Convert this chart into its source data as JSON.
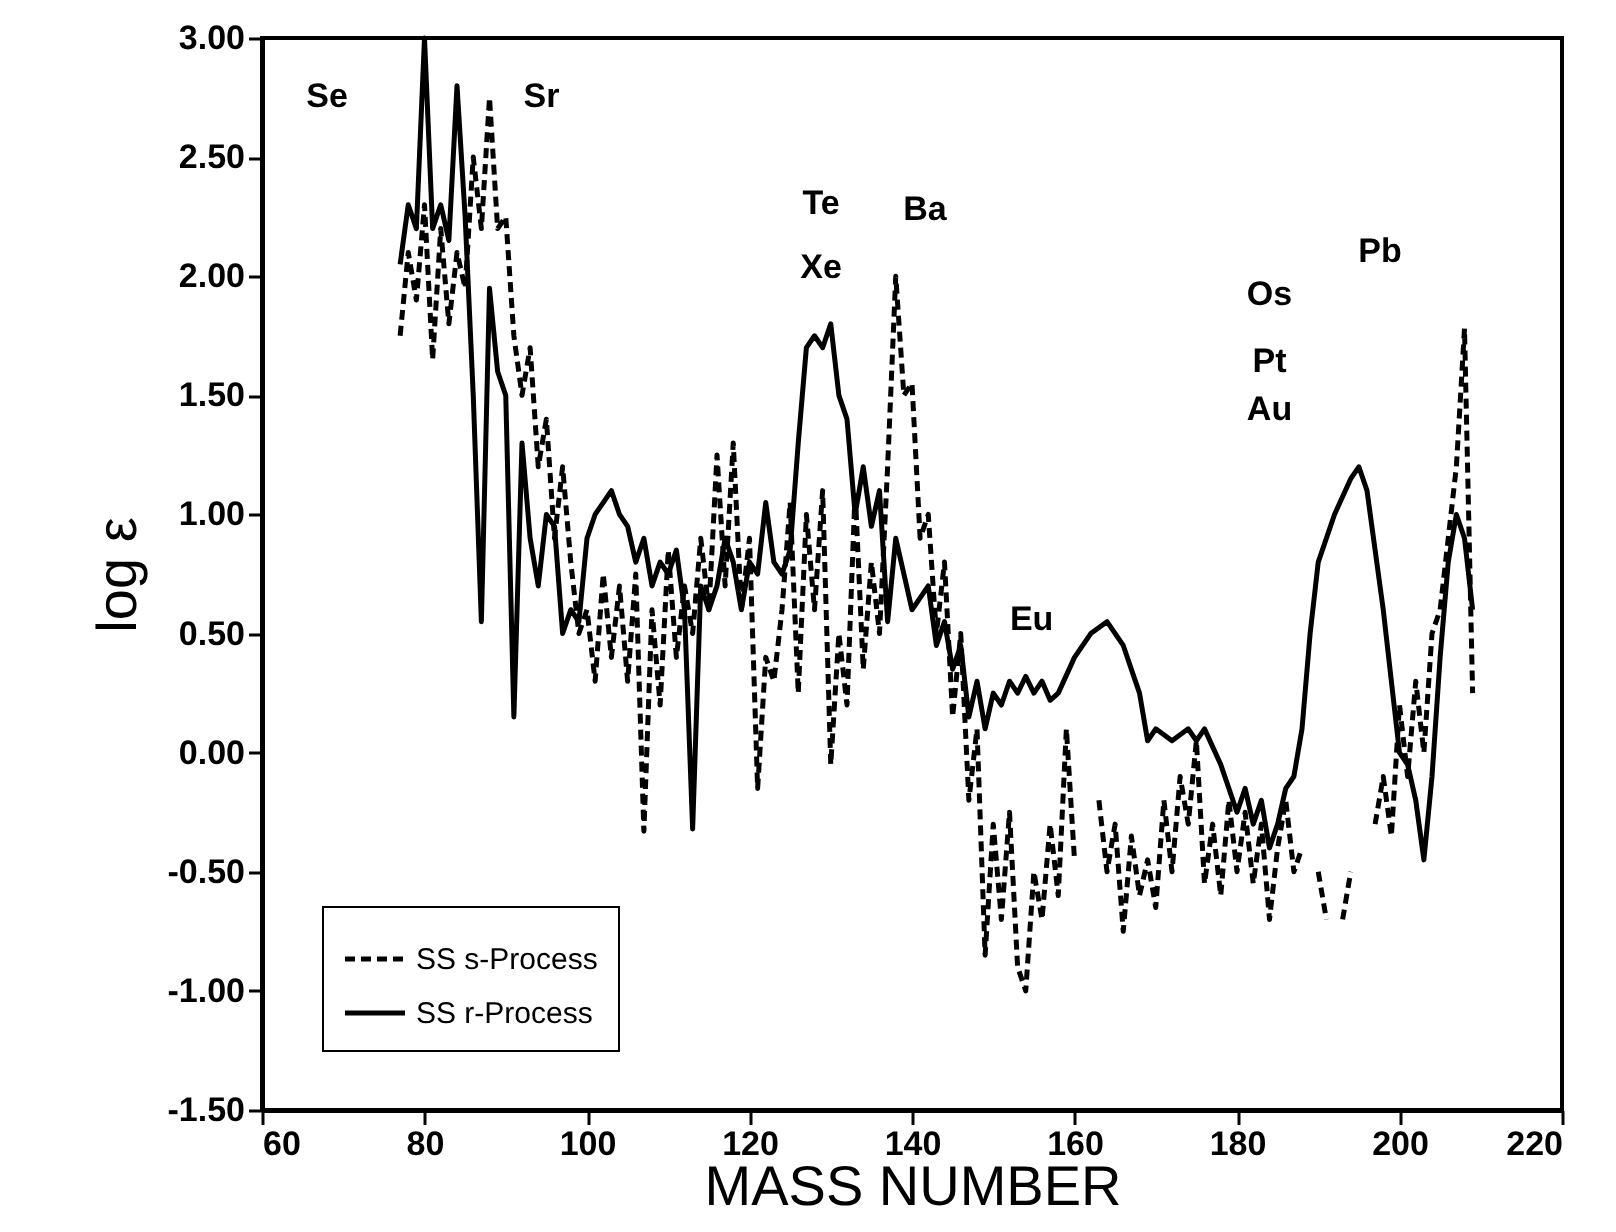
{
  "chart_data": {
    "type": "line",
    "xlabel": "MASS NUMBER",
    "ylabel": "log ε",
    "xlim": [
      60,
      220
    ],
    "xticks": [
      60,
      80,
      100,
      120,
      140,
      160,
      180,
      200,
      220
    ],
    "ylim": [
      -1.5,
      3.0
    ],
    "yticks": [
      {
        "value": -1.5,
        "label": "-1.50"
      },
      {
        "value": -1.0,
        "label": "-1.00"
      },
      {
        "value": -0.5,
        "label": "-0.50"
      },
      {
        "value": 0,
        "label": "0.00"
      },
      {
        "value": 0.5,
        "label": "0.50"
      },
      {
        "value": 1.0,
        "label": "1.00"
      },
      {
        "value": 1.5,
        "label": "1.50"
      },
      {
        "value": 2.0,
        "label": "2.00"
      },
      {
        "value": 2.5,
        "label": "2.50"
      },
      {
        "value": 3.0,
        "label": "3.00"
      }
    ],
    "grid": false,
    "legend": "bottom left",
    "marker": "none",
    "annotations": [
      "Se",
      "Sr",
      "Te",
      "Xe",
      "Ba",
      "Eu",
      "Os",
      "Pt",
      "Au",
      "Pb"
    ],
    "series": [
      {
        "name": "SS s-Process",
        "color": "#000000",
        "line_style": "dashed",
        "x": [
          77,
          78,
          79,
          80,
          81,
          82,
          83,
          84,
          85,
          86,
          87,
          88,
          89,
          90,
          91,
          92,
          93,
          94,
          95,
          96,
          97,
          98,
          99,
          100,
          101,
          102,
          103,
          104,
          105,
          106,
          107,
          108,
          109,
          110,
          111,
          112,
          113,
          114,
          115,
          116,
          117,
          118,
          119,
          120,
          121,
          122,
          123,
          124,
          125,
          126,
          127,
          128,
          129,
          130,
          131,
          132,
          133,
          134,
          135,
          136,
          137,
          138,
          139,
          140,
          141,
          142,
          143,
          144,
          145,
          146,
          147,
          148,
          149,
          150,
          151,
          152,
          153,
          154,
          155,
          156,
          157,
          158,
          159,
          160,
          161,
          162,
          163,
          164,
          165,
          166,
          167,
          168,
          169,
          170,
          171,
          172,
          173,
          174,
          175,
          176,
          177,
          178,
          179,
          180,
          181,
          182,
          183,
          184,
          185,
          186,
          187,
          188,
          189,
          190,
          191,
          192,
          193,
          194,
          195,
          196,
          197,
          198,
          199,
          200,
          201,
          202,
          203,
          204,
          205,
          206,
          207,
          208,
          209
        ],
        "values": [
          1.75,
          2.1,
          1.9,
          2.3,
          1.65,
          2.2,
          1.8,
          2.1,
          1.95,
          2.5,
          2.2,
          2.75,
          2.2,
          2.25,
          1.75,
          1.5,
          1.7,
          1.2,
          1.4,
          0.9,
          1.2,
          0.8,
          0.5,
          0.6,
          0.3,
          0.75,
          0.4,
          0.7,
          0.3,
          0.75,
          -0.33,
          0.6,
          0.2,
          0.85,
          0.4,
          0.7,
          0.5,
          0.9,
          0.6,
          1.25,
          0.7,
          1.3,
          0.6,
          0.9,
          -0.15,
          0.4,
          0.3,
          0.6,
          1.05,
          0.25,
          1.0,
          0.6,
          1.1,
          -0.05,
          0.5,
          0.2,
          1.1,
          0.35,
          0.8,
          0.5,
          1.2,
          2.0,
          1.5,
          1.55,
          0.9,
          1.0,
          0.5,
          0.8,
          0.15,
          0.5,
          -0.2,
          0.1,
          -0.85,
          -0.3,
          -0.7,
          -0.25,
          -0.9,
          -1.0,
          -0.5,
          -0.7,
          -0.3,
          -0.6,
          0.1,
          -0.45,
          null,
          null,
          -0.2,
          -0.5,
          -0.3,
          -0.75,
          -0.35,
          -0.6,
          -0.45,
          -0.65,
          -0.2,
          -0.5,
          -0.1,
          -0.3,
          0.05,
          -0.55,
          -0.3,
          -0.6,
          -0.2,
          -0.5,
          -0.25,
          -0.55,
          -0.3,
          -0.7,
          -0.4,
          -0.2,
          -0.5,
          -0.4,
          null,
          -0.5,
          -0.7,
          null,
          -0.7,
          -0.5,
          null,
          null,
          -0.3,
          -0.1,
          -0.35,
          0.2,
          -0.1,
          0.3,
          0.0,
          0.5,
          0.6,
          0.9,
          1.2,
          1.78,
          0.25
        ]
      },
      {
        "name": "SS r-Process",
        "color": "#000000",
        "line_style": "solid",
        "x": [
          77,
          78,
          79,
          80,
          81,
          82,
          83,
          84,
          85,
          86,
          87,
          88,
          89,
          90,
          91,
          92,
          93,
          94,
          95,
          96,
          97,
          98,
          99,
          100,
          101,
          102,
          103,
          104,
          105,
          106,
          107,
          108,
          109,
          110,
          111,
          112,
          113,
          114,
          115,
          116,
          117,
          118,
          119,
          120,
          121,
          122,
          123,
          124,
          125,
          126,
          127,
          128,
          129,
          130,
          131,
          132,
          133,
          134,
          135,
          136,
          137,
          138,
          139,
          140,
          141,
          142,
          143,
          144,
          145,
          146,
          147,
          148,
          149,
          150,
          151,
          152,
          153,
          154,
          155,
          156,
          157,
          158,
          160,
          162,
          164,
          166,
          168,
          169,
          170,
          172,
          174,
          175,
          176,
          178,
          180,
          181,
          182,
          183,
          184,
          185,
          186,
          187,
          188,
          189,
          190,
          192,
          194,
          195,
          196,
          198,
          199,
          200,
          201,
          202,
          203,
          204,
          205,
          206,
          207,
          208,
          209
        ],
        "values": [
          2.05,
          2.3,
          2.2,
          3.0,
          2.2,
          2.3,
          2.15,
          2.8,
          2.25,
          1.5,
          0.55,
          1.95,
          1.6,
          1.5,
          0.15,
          1.3,
          0.9,
          0.7,
          1.0,
          0.95,
          0.5,
          0.6,
          0.55,
          0.9,
          1.0,
          1.05,
          1.1,
          1.0,
          0.95,
          0.8,
          0.9,
          0.7,
          0.8,
          0.75,
          0.85,
          0.6,
          -0.32,
          0.7,
          0.6,
          0.7,
          0.9,
          0.8,
          0.6,
          0.8,
          0.75,
          1.05,
          0.8,
          0.75,
          0.85,
          1.3,
          1.7,
          1.75,
          1.7,
          1.8,
          1.5,
          1.4,
          1.0,
          1.2,
          0.95,
          1.1,
          0.55,
          0.9,
          0.75,
          0.6,
          0.65,
          0.7,
          0.45,
          0.55,
          0.35,
          0.45,
          0.15,
          0.3,
          0.1,
          0.25,
          0.2,
          0.3,
          0.25,
          0.32,
          0.25,
          0.3,
          0.22,
          0.25,
          0.4,
          0.5,
          0.55,
          0.45,
          0.25,
          0.05,
          0.1,
          0.05,
          0.1,
          0.05,
          0.1,
          -0.05,
          -0.25,
          -0.15,
          -0.3,
          -0.2,
          -0.4,
          -0.3,
          -0.15,
          -0.1,
          0.1,
          0.5,
          0.8,
          1.0,
          1.15,
          1.2,
          1.1,
          0.6,
          0.3,
          0.0,
          -0.05,
          -0.2,
          -0.45,
          -0.1,
          0.4,
          0.8,
          1.0,
          0.9,
          0.6
        ]
      }
    ]
  }
}
